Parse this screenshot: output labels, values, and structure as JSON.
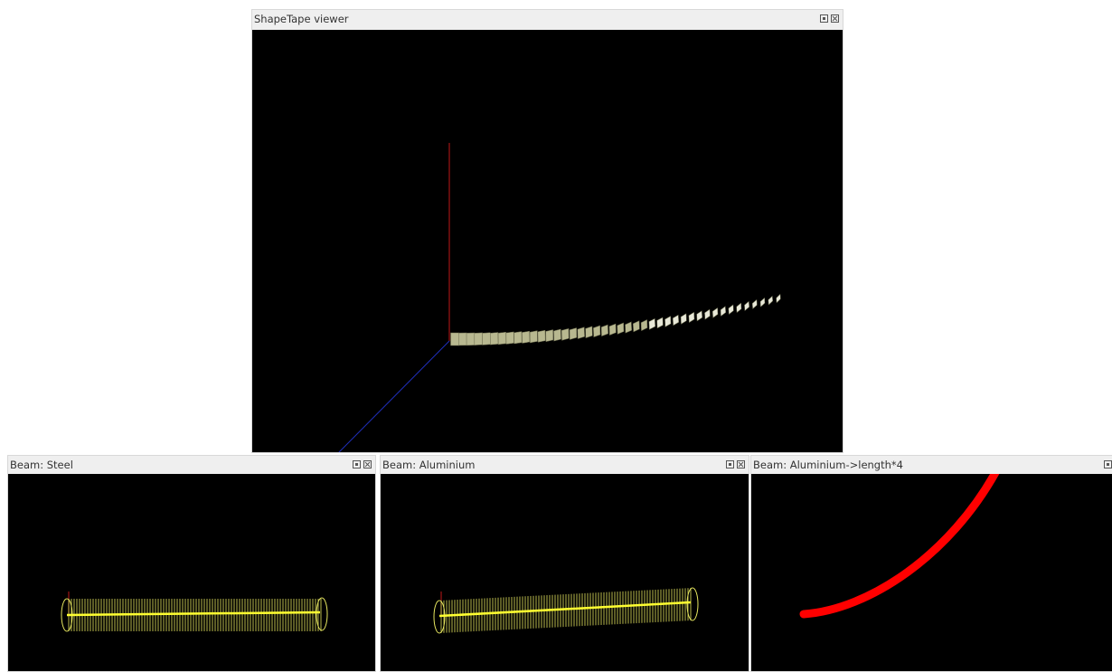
{
  "windows": [
    {
      "title": "ShapeTape viewer"
    },
    {
      "title": "Beam: Steel"
    },
    {
      "title": "Beam: Aluminium"
    },
    {
      "title": "Beam: Aluminium->length*4"
    }
  ]
}
